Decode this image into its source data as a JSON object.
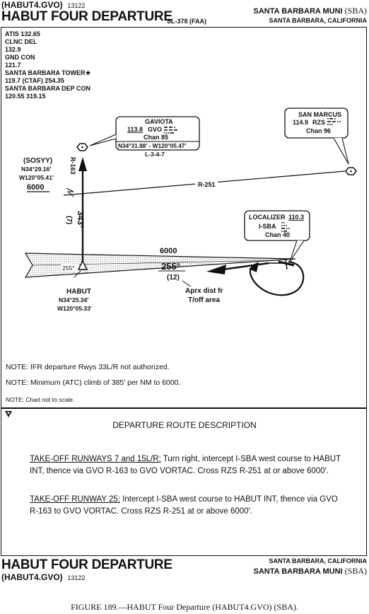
{
  "header": {
    "code": "(HABUT4.GVO)",
    "code_num": "13122",
    "title": "HABUT FOUR DEPARTURE",
    "chart_id": "SL-378 (FAA)",
    "airport": "SANTA BARBARA MUNI",
    "airport_code": "(SBA)",
    "city": "SANTA BARBARA, CALIFORNIA"
  },
  "comms": [
    "ATIS 132.65",
    "CLNC DEL",
    "132.9",
    "GND CON",
    "121.7",
    "SANTA BARBARA TOWER",
    "119.7 (CTAF)  254.35",
    "SANTA BARBARA DEP CON",
    "120.55  319.15"
  ],
  "tower_marker": "★",
  "gaviota": {
    "name": "GAVIOTA",
    "freq": "113.8",
    "ident": "GVO",
    "chan": "Chan 85",
    "coords": "N34°31.88′ - W120°05.47′",
    "sectional": "L-3-4-7"
  },
  "san_marcus": {
    "name": "SAN MARCUS",
    "freq": "114.9",
    "ident": "RZS",
    "chan": "Chan 96"
  },
  "sosyy": {
    "name": "(SOSYY)",
    "lat": "N34°29.16′",
    "lon": "W120°05.41′",
    "alt": "6000"
  },
  "localizer": {
    "name": "LOCALIZER",
    "freq": "110.3",
    "ident": "I-SBA",
    "chan": "Chan 40"
  },
  "habut": {
    "name": "HABUT",
    "lat": "N34°25.34′",
    "lon": "W120°05.33′"
  },
  "map": {
    "r163": "R-163",
    "r251": "R-251",
    "course343": "343°",
    "dist7": "(7)",
    "alt6000": "6000",
    "course255": "255°",
    "dist12": "(12)",
    "course255_small": "255°",
    "aprx_line1": "Aprx dist fr",
    "aprx_line2": "T/off area"
  },
  "notes": [
    "NOTE: IFR departure Rwys 33L/R not authorized.",
    "NOTE:  Minimum (ATC) climb of 385′ per NM to 6000.",
    "NOTE: Chart not to scale."
  ],
  "description": {
    "heading": "DEPARTURE ROUTE DESCRIPTION",
    "p1_label": "TAKE-OFF RUNWAYS 7 and 15L/R:",
    "p1_text": " Turn right, intercept I-SBA west course to HABUT INT, thence via GVO R-163 to GVO VORTAC.  Cross RZS R-251 at or above 6000′.",
    "p2_label": "TAKE-OFF RUNWAY 25:",
    "p2_text": " Intercept I-SBA west course to HABUT INT, thence via GVO R-163 to GVO VORTAC. Cross RZS R-251 at or above 6000′."
  },
  "footer": {
    "title": "HABUT FOUR DEPARTURE",
    "code": "(HABUT4.GVO)",
    "code_num": "13122",
    "city": "SANTA BARBARA, CALIFORNIA",
    "airport": "SANTA BARBARA MUNI",
    "airport_code": "(SBA)"
  },
  "caption": "FIGURE 189.—HABUT Four Departure (HABUT4.GVO) (SBA)."
}
